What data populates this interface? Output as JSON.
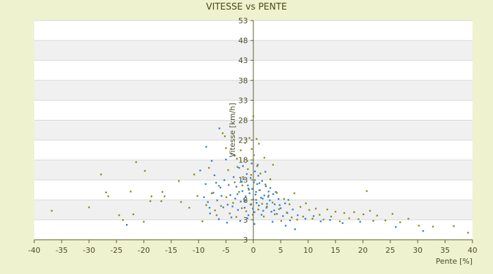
{
  "chart_data": {
    "type": "scatter",
    "title": "VITESSE vs PENTE",
    "xlabel": "Pente [%]",
    "ylabel": "Vitesse [km/h]",
    "xlim": [
      -40,
      40
    ],
    "ylim": [
      3,
      53
    ],
    "xticks": [
      "-40",
      "-35",
      "-30",
      "-25",
      "-20",
      "-15",
      "-10",
      "-5",
      "0",
      "5",
      "10",
      "15",
      "20",
      "25",
      "30",
      "35",
      "40"
    ],
    "yticks": [
      "53",
      "48",
      "43",
      "38",
      "33",
      "28",
      "23",
      "18",
      "13",
      "8",
      "3",
      "3"
    ],
    "grid": true,
    "legend": "none",
    "colors": {
      "series_a": "#2f7fd8",
      "series_b": "#8a8a1a",
      "band_dark": "#f0f0f0",
      "band_light": "#ffffff",
      "axis": "#5a5a2a"
    },
    "series": [
      {
        "color": "#2f7fd8",
        "points": [
          [
            -9.7,
            18.8
          ],
          [
            -8.7,
            15.7
          ],
          [
            -8.3,
            11.6
          ],
          [
            -7.9,
            9.0
          ],
          [
            -7.3,
            13.7
          ],
          [
            -7.1,
            17.7
          ],
          [
            -6.6,
            12.0
          ],
          [
            -6.3,
            7.7
          ],
          [
            -6.0,
            14.9
          ],
          [
            -5.5,
            10.4
          ],
          [
            -5.3,
            16.6
          ],
          [
            -5.0,
            21.3
          ],
          [
            -4.7,
            11.0
          ],
          [
            -4.2,
            13.2
          ],
          [
            -4.0,
            8.1
          ],
          [
            -3.6,
            17.3
          ],
          [
            -3.3,
            12.4
          ],
          [
            -3.1,
            15.1
          ],
          [
            -2.8,
            9.8
          ],
          [
            -2.6,
            19.4
          ],
          [
            -2.3,
            11.7
          ],
          [
            -2.0,
            14.1
          ],
          [
            -1.8,
            16.8
          ],
          [
            -1.6,
            10.3
          ],
          [
            -1.4,
            12.9
          ],
          [
            -1.2,
            18.0
          ],
          [
            -1.0,
            15.4
          ],
          [
            -0.9,
            8.6
          ],
          [
            -0.7,
            13.6
          ],
          [
            -0.5,
            17.1
          ],
          [
            -0.4,
            11.1
          ],
          [
            -0.3,
            20.4
          ],
          [
            -0.2,
            14.6
          ],
          [
            0.0,
            12.2
          ],
          [
            0.1,
            16.1
          ],
          [
            0.2,
            9.3
          ],
          [
            0.3,
            18.6
          ],
          [
            0.5,
            13.9
          ],
          [
            0.6,
            11.4
          ],
          [
            0.7,
            15.7
          ],
          [
            0.9,
            17.6
          ],
          [
            1.0,
            10.8
          ],
          [
            1.2,
            14.3
          ],
          [
            1.4,
            12.6
          ],
          [
            1.6,
            16.4
          ],
          [
            1.8,
            9.6
          ],
          [
            2.0,
            13.1
          ],
          [
            2.3,
            15.2
          ],
          [
            2.5,
            11.2
          ],
          [
            2.8,
            14.0
          ],
          [
            3.0,
            12.0
          ],
          [
            3.3,
            9.4
          ],
          [
            3.6,
            13.4
          ],
          [
            3.9,
            11.1
          ],
          [
            4.3,
            8.9
          ],
          [
            4.6,
            12.3
          ],
          [
            5.0,
            10.2
          ],
          [
            5.4,
            8.4
          ],
          [
            5.8,
            11.3
          ],
          [
            6.2,
            9.1
          ],
          [
            6.7,
            7.4
          ],
          [
            7.2,
            9.9
          ],
          [
            -9.0,
            12.7
          ],
          [
            -8.0,
            10.3
          ],
          [
            -6.8,
            16.0
          ],
          [
            -5.8,
            13.0
          ],
          [
            -4.5,
            15.5
          ],
          [
            -3.8,
            10.6
          ],
          [
            -2.9,
            13.4
          ],
          [
            -2.1,
            16.2
          ],
          [
            -1.5,
            11.9
          ],
          [
            -0.8,
            14.4
          ],
          [
            -0.1,
            10.1
          ],
          [
            0.4,
            13.3
          ],
          [
            1.1,
            15.9
          ],
          [
            1.7,
            12.4
          ],
          [
            2.4,
            10.3
          ],
          [
            3.1,
            14.8
          ],
          [
            3.8,
            9.7
          ],
          [
            4.8,
            10.9
          ],
          [
            -8.6,
            24.2
          ],
          [
            -6.2,
            28.4
          ],
          [
            -7.6,
            21.0
          ],
          [
            5.9,
            6.2
          ],
          [
            7.6,
            5.4
          ],
          [
            -23.1,
            6.4
          ],
          [
            -3.4,
            22.2
          ],
          [
            -1.9,
            19.8
          ],
          [
            0.8,
            20.1
          ],
          [
            2.2,
            18.5
          ],
          [
            1.5,
            8.7
          ],
          [
            3.5,
            7.1
          ],
          [
            -1.1,
            7.9
          ],
          [
            -4.8,
            6.9
          ],
          [
            0.2,
            6.6
          ],
          [
            2.7,
            12.8
          ],
          [
            4.1,
            13.9
          ],
          [
            -2.4,
            7.3
          ],
          [
            6.4,
            12.1
          ],
          [
            8.1,
            8.6
          ],
          [
            9.5,
            7.8
          ],
          [
            11.0,
            8.4
          ],
          [
            12.3,
            7.2
          ],
          [
            14.0,
            7.5
          ],
          [
            16.3,
            6.8
          ],
          [
            19.5,
            7.1
          ],
          [
            26.0,
            5.9
          ],
          [
            31.0,
            5.0
          ]
        ]
      },
      {
        "color": "#8a8a1a",
        "points": [
          [
            -36.8,
            9.6
          ],
          [
            -30.0,
            10.4
          ],
          [
            -27.8,
            17.9
          ],
          [
            -26.9,
            13.8
          ],
          [
            -26.5,
            12.9
          ],
          [
            -24.5,
            8.6
          ],
          [
            -23.8,
            7.5
          ],
          [
            -22.4,
            14.0
          ],
          [
            -21.9,
            8.8
          ],
          [
            -21.4,
            20.7
          ],
          [
            -20.0,
            7.1
          ],
          [
            -19.8,
            18.7
          ],
          [
            -18.8,
            11.8
          ],
          [
            -18.6,
            12.9
          ],
          [
            -16.8,
            11.8
          ],
          [
            -16.6,
            13.9
          ],
          [
            -16.2,
            12.9
          ],
          [
            -13.6,
            16.4
          ],
          [
            -13.2,
            11.6
          ],
          [
            -11.7,
            10.3
          ],
          [
            -10.8,
            17.9
          ],
          [
            -10.2,
            13.0
          ],
          [
            -9.3,
            7.2
          ],
          [
            -8.6,
            10.9
          ],
          [
            -8.1,
            19.4
          ],
          [
            -7.6,
            13.6
          ],
          [
            -7.0,
            9.7
          ],
          [
            -6.7,
            8.6
          ],
          [
            -6.3,
            15.3
          ],
          [
            -5.9,
            10.7
          ],
          [
            -5.6,
            27.3
          ],
          [
            -5.2,
            26.6
          ],
          [
            -4.9,
            12.7
          ],
          [
            -4.6,
            18.9
          ],
          [
            -4.3,
            9.0
          ],
          [
            -4.0,
            22.6
          ],
          [
            -3.7,
            11.4
          ],
          [
            -3.4,
            16.1
          ],
          [
            -3.1,
            8.2
          ],
          [
            -2.9,
            19.6
          ],
          [
            -2.6,
            13.9
          ],
          [
            -2.3,
            23.4
          ],
          [
            -2.1,
            10.2
          ],
          [
            -1.9,
            17.3
          ],
          [
            -1.7,
            12.3
          ],
          [
            -1.5,
            25.1
          ],
          [
            -1.3,
            9.5
          ],
          [
            -1.1,
            21.0
          ],
          [
            -0.9,
            14.7
          ],
          [
            -0.7,
            26.2
          ],
          [
            -0.5,
            11.0
          ],
          [
            -0.3,
            23.7
          ],
          [
            -0.1,
            8.7
          ],
          [
            0.1,
            22.3
          ],
          [
            0.3,
            16.6
          ],
          [
            0.5,
            12.1
          ],
          [
            0.7,
            19.8
          ],
          [
            0.9,
            9.9
          ],
          [
            1.1,
            14.3
          ],
          [
            1.3,
            18.1
          ],
          [
            1.6,
            11.2
          ],
          [
            1.9,
            8.3
          ],
          [
            2.2,
            15.6
          ],
          [
            2.5,
            10.6
          ],
          [
            2.8,
            13.1
          ],
          [
            3.1,
            16.8
          ],
          [
            3.5,
            11.5
          ],
          [
            3.9,
            8.8
          ],
          [
            4.3,
            13.7
          ],
          [
            4.7,
            10.0
          ],
          [
            5.1,
            7.3
          ],
          [
            5.6,
            12.3
          ],
          [
            6.1,
            9.2
          ],
          [
            6.6,
            11.1
          ],
          [
            7.0,
            8.1
          ],
          [
            7.5,
            13.6
          ],
          [
            8.0,
            7.6
          ],
          [
            8.6,
            10.5
          ],
          [
            9.1,
            8.3
          ],
          [
            9.6,
            11.3
          ],
          [
            10.2,
            9.8
          ],
          [
            10.8,
            7.8
          ],
          [
            11.4,
            10.1
          ],
          [
            12.1,
            8.7
          ],
          [
            12.8,
            7.6
          ],
          [
            13.5,
            9.9
          ],
          [
            14.2,
            8.3
          ],
          [
            15.0,
            9.4
          ],
          [
            15.8,
            7.2
          ],
          [
            16.6,
            9.1
          ],
          [
            17.5,
            7.9
          ],
          [
            18.4,
            9.3
          ],
          [
            19.2,
            7.7
          ],
          [
            20.1,
            8.8
          ],
          [
            20.7,
            14.1
          ],
          [
            21.3,
            9.6
          ],
          [
            21.9,
            7.3
          ],
          [
            22.6,
            8.5
          ],
          [
            24.1,
            7.4
          ],
          [
            25.4,
            8.9
          ],
          [
            26.8,
            7.0
          ],
          [
            28.3,
            7.8
          ],
          [
            30.2,
            6.2
          ],
          [
            32.8,
            6.0
          ],
          [
            36.6,
            6.1
          ],
          [
            39.2,
            4.6
          ],
          [
            -5.0,
            23.9
          ],
          [
            -3.0,
            21.5
          ],
          [
            -1.0,
            19.1
          ],
          [
            1.0,
            24.9
          ],
          [
            3.6,
            20.1
          ],
          [
            2.0,
            21.7
          ],
          [
            0.6,
            26.0
          ],
          [
            -0.4,
            17.8
          ],
          [
            -2.0,
            15.4
          ],
          [
            0.0,
            31.2
          ]
        ]
      }
    ]
  }
}
